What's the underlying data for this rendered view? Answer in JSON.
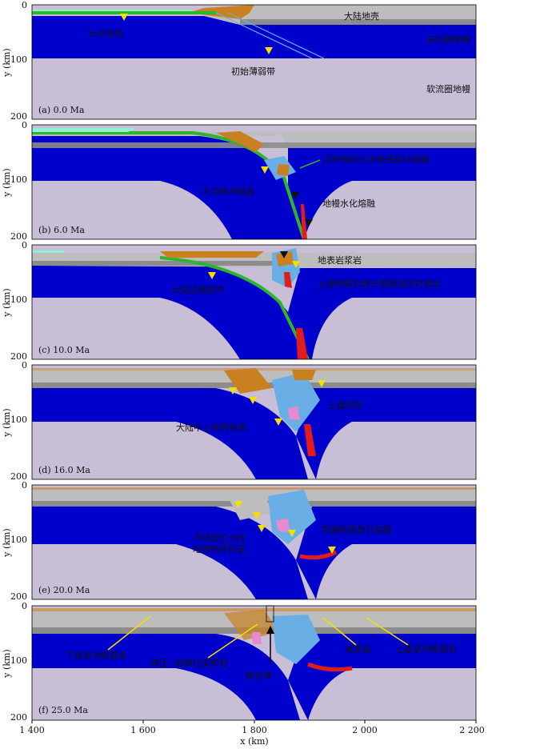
{
  "axes": {
    "x_label": "x (km)",
    "y_label": "y (km)",
    "x_ticks": [
      "1 400",
      "1 600",
      "1 800",
      "2 000",
      "2 200"
    ],
    "y_ticks": [
      "0",
      "100",
      "200"
    ]
  },
  "colors": {
    "ocean_crust": "#2db52d",
    "sediment": "#c98021",
    "continental_crust": "#bdbdbd",
    "continental_lower": "#8c8c8c",
    "lithosphere_mantle": "#0000cc",
    "asthenosphere": "#c8bfd6",
    "melt": "#e21b1b",
    "hydrated": "#6aaee6",
    "pink": "#e68bd0",
    "cyan_sed": "#8ff0d2",
    "arrow": "#f4e000",
    "arrow_black": "#111111"
  },
  "panels": [
    {
      "caption": "(a) 0.0 Ma",
      "labels": [
        {
          "id": "oceanic-crust",
          "text": "大洋地壳"
        },
        {
          "id": "continental-crust",
          "text": "大陆地壳"
        },
        {
          "id": "lithosphere-mantle",
          "text": "岩石圈地幔"
        },
        {
          "id": "initial-weak-zone",
          "text": "初始薄弱带"
        },
        {
          "id": "asthenosphere-mantle",
          "text": "软流圈地幔"
        }
      ]
    },
    {
      "caption": "(b) 6.0 Ma",
      "labels": [
        {
          "id": "sediment-melting",
          "text": "沉积物和大洋地壳部分熔融"
        },
        {
          "id": "subduction-channel",
          "text": "大洋俯冲隧道"
        },
        {
          "id": "mantle-hydration-melting",
          "text": "地幔水化熔融"
        }
      ]
    },
    {
      "caption": "(c) 10.0 Ma",
      "labels": [
        {
          "id": "surface-magma",
          "text": "地表岩浆岩"
        },
        {
          "id": "continental-subduction",
          "text": "大陆边缘俯冲"
        },
        {
          "id": "upper-plate-extension",
          "text": "上盘伸展及部分熔融混杂岩侵出"
        }
      ]
    },
    {
      "caption": "(d) 16.0 Ma",
      "labels": [
        {
          "id": "upper-plate-compression",
          "text": "上盘挤压"
        },
        {
          "id": "crust-detachment",
          "text": "大陆中上地壳拆离"
        }
      ]
    },
    {
      "caption": "(e) 20.0 Ma",
      "labels": [
        {
          "id": "crust-mantle-melting",
          "text": "壳幔物质部分熔融"
        },
        {
          "id": "exhumation-line1",
          "text": "不同层位大陆"
        },
        {
          "id": "exhumation-line2",
          "text": "地壳物质折返"
        }
      ]
    },
    {
      "caption": "(f) 25.0 Ma",
      "labels": [
        {
          "id": "lower-thrust",
          "text": "下盘逆冲断裂系"
        },
        {
          "id": "hp-uhp-rocks",
          "text": "高压~超高压变质岩"
        },
        {
          "id": "suture-zone",
          "text": "缝合带"
        },
        {
          "id": "magmatic-rock",
          "text": "岩浆岩"
        },
        {
          "id": "upper-thrust",
          "text": "上盘逆冲断裂系"
        }
      ]
    }
  ]
}
